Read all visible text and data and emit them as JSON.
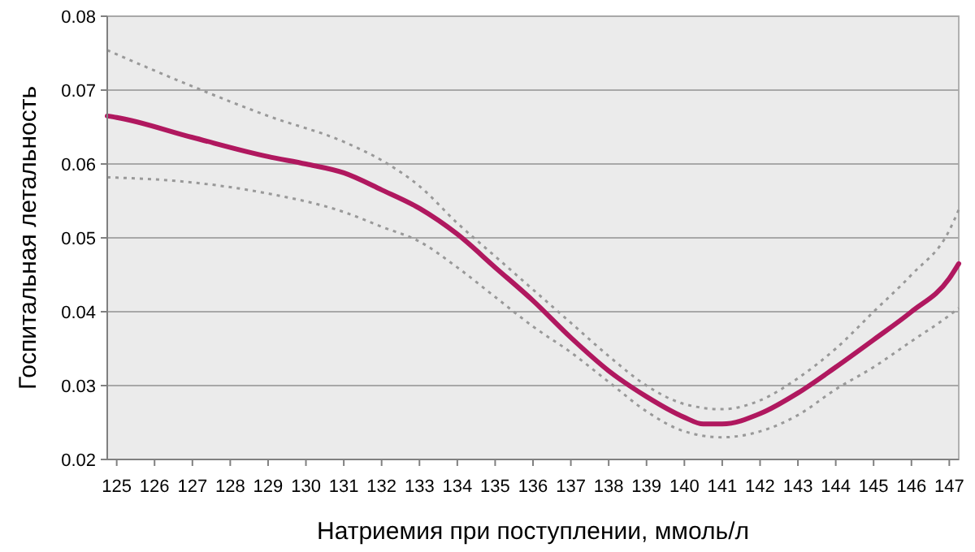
{
  "chart_data": {
    "type": "line",
    "xlabel": "Натриемия при поступлении, ммоль/л",
    "ylabel": "Госпитальная летальность",
    "xlim": [
      124.75,
      147.25
    ],
    "xticks": [
      125,
      126,
      127,
      128,
      129,
      130,
      131,
      132,
      133,
      134,
      135,
      136,
      137,
      138,
      139,
      140,
      141,
      142,
      143,
      144,
      145,
      146,
      147
    ],
    "ylim": [
      0.02,
      0.08
    ],
    "yticks": [
      0.02,
      0.03,
      0.04,
      0.05,
      0.06,
      0.07,
      0.08
    ],
    "grid": "y",
    "marker": "none",
    "series": [
      {
        "color": "#999999",
        "line_style": "dotted",
        "x": [
          124.75,
          127,
          129,
          131,
          132,
          133,
          134,
          135,
          136,
          137,
          138,
          139,
          140,
          141,
          142,
          143,
          144,
          145,
          146,
          147,
          147.25
        ],
        "values": [
          0.0754,
          0.0705,
          0.0665,
          0.063,
          0.0605,
          0.057,
          0.052,
          0.0475,
          0.043,
          0.0385,
          0.034,
          0.03,
          0.0275,
          0.0268,
          0.028,
          0.031,
          0.035,
          0.04,
          0.045,
          0.051,
          0.0538
        ]
      },
      {
        "color": "#999999",
        "line_style": "dotted",
        "x": [
          124.75,
          127,
          129,
          131,
          132,
          133,
          134,
          135,
          136,
          137,
          138,
          139,
          140,
          141,
          142,
          143,
          144,
          145,
          146,
          147,
          147.25
        ],
        "values": [
          0.0582,
          0.0575,
          0.056,
          0.0535,
          0.0515,
          0.0495,
          0.046,
          0.042,
          0.038,
          0.0345,
          0.0305,
          0.0265,
          0.0238,
          0.023,
          0.0238,
          0.026,
          0.0295,
          0.0325,
          0.036,
          0.0395,
          0.0405
        ]
      },
      {
        "color": "#b0185f",
        "line_style": "solid",
        "x": [
          124.75,
          125,
          127,
          129,
          130,
          131,
          132,
          133,
          134,
          135,
          136,
          137,
          138,
          139,
          140,
          140.5,
          141,
          142,
          143,
          144,
          145,
          146,
          147,
          147.25
        ],
        "values": [
          0.0665,
          0.0663,
          0.0636,
          0.061,
          0.06,
          0.0588,
          0.0565,
          0.054,
          0.0505,
          0.046,
          0.0415,
          0.0365,
          0.032,
          0.0285,
          0.0257,
          0.0248,
          0.0248,
          0.0262,
          0.029,
          0.0325,
          0.0362,
          0.04,
          0.0445,
          0.0465
        ]
      }
    ]
  }
}
